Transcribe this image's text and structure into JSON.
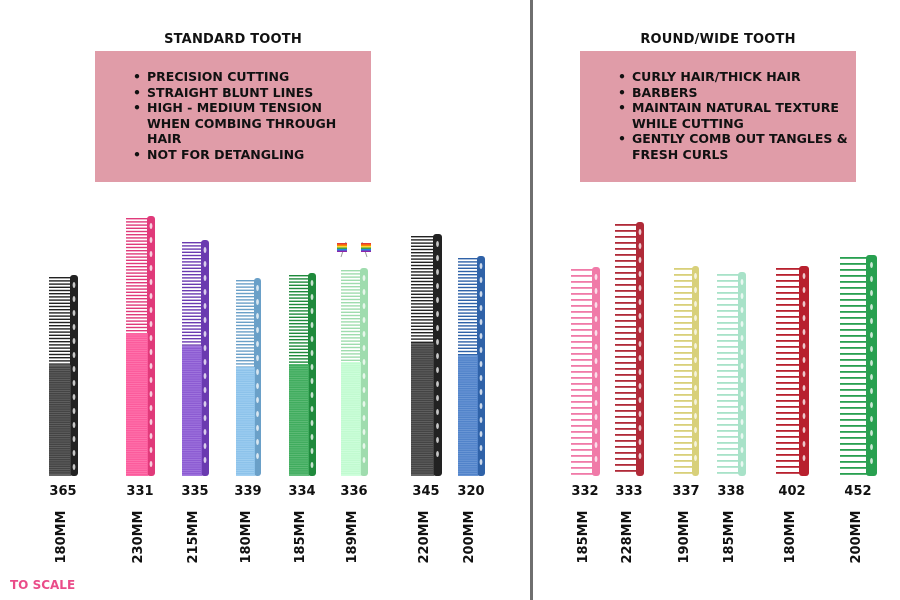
{
  "sections": {
    "standard": {
      "title": "STANDARD TOOTH",
      "bullets": [
        "PRECISION CUTTING",
        "STRAIGHT BLUNT LINES",
        "HIGH - MEDIUM TENSION WHEN COMBING THROUGH HAIR",
        "NOT FOR DETANGLING"
      ],
      "combs": [
        {
          "model": "365",
          "size": "180MM",
          "color": "#222222"
        },
        {
          "model": "331",
          "size": "230MM",
          "color": "#e03a7a"
        },
        {
          "model": "335",
          "size": "215MM",
          "color": "#6a3ab0"
        },
        {
          "model": "339",
          "size": "180MM",
          "color": "#6aa0c8"
        },
        {
          "model": "334",
          "size": "185MM",
          "color": "#1f8a3c"
        },
        {
          "model": "336",
          "size": "189MM",
          "color": "#9fdcae"
        },
        {
          "model": "345",
          "size": "220MM",
          "color": "#222222"
        },
        {
          "model": "320",
          "size": "200MM",
          "color": "#2f62a8"
        }
      ]
    },
    "round": {
      "title": "ROUND/WIDE TOOTH",
      "bullets": [
        "CURLY HAIR/THICK HAIR",
        "BARBERS",
        "MAINTAIN NATURAL TEXTURE WHILE CUTTING",
        "GENTLY COMB OUT TANGLES & FRESH CURLS"
      ],
      "combs": [
        {
          "model": "332",
          "size": "185MM",
          "color": "#f07aa8"
        },
        {
          "model": "333",
          "size": "228MM",
          "color": "#b02a38"
        },
        {
          "model": "337",
          "size": "190MM",
          "color": "#d8d07a"
        },
        {
          "model": "338",
          "size": "185MM",
          "color": "#a8e2c8"
        },
        {
          "model": "402",
          "size": "180MM",
          "color": "#b8202e"
        },
        {
          "model": "452",
          "size": "200MM",
          "color": "#28a050"
        }
      ]
    }
  },
  "footer": {
    "scale_note": "TO SCALE"
  }
}
